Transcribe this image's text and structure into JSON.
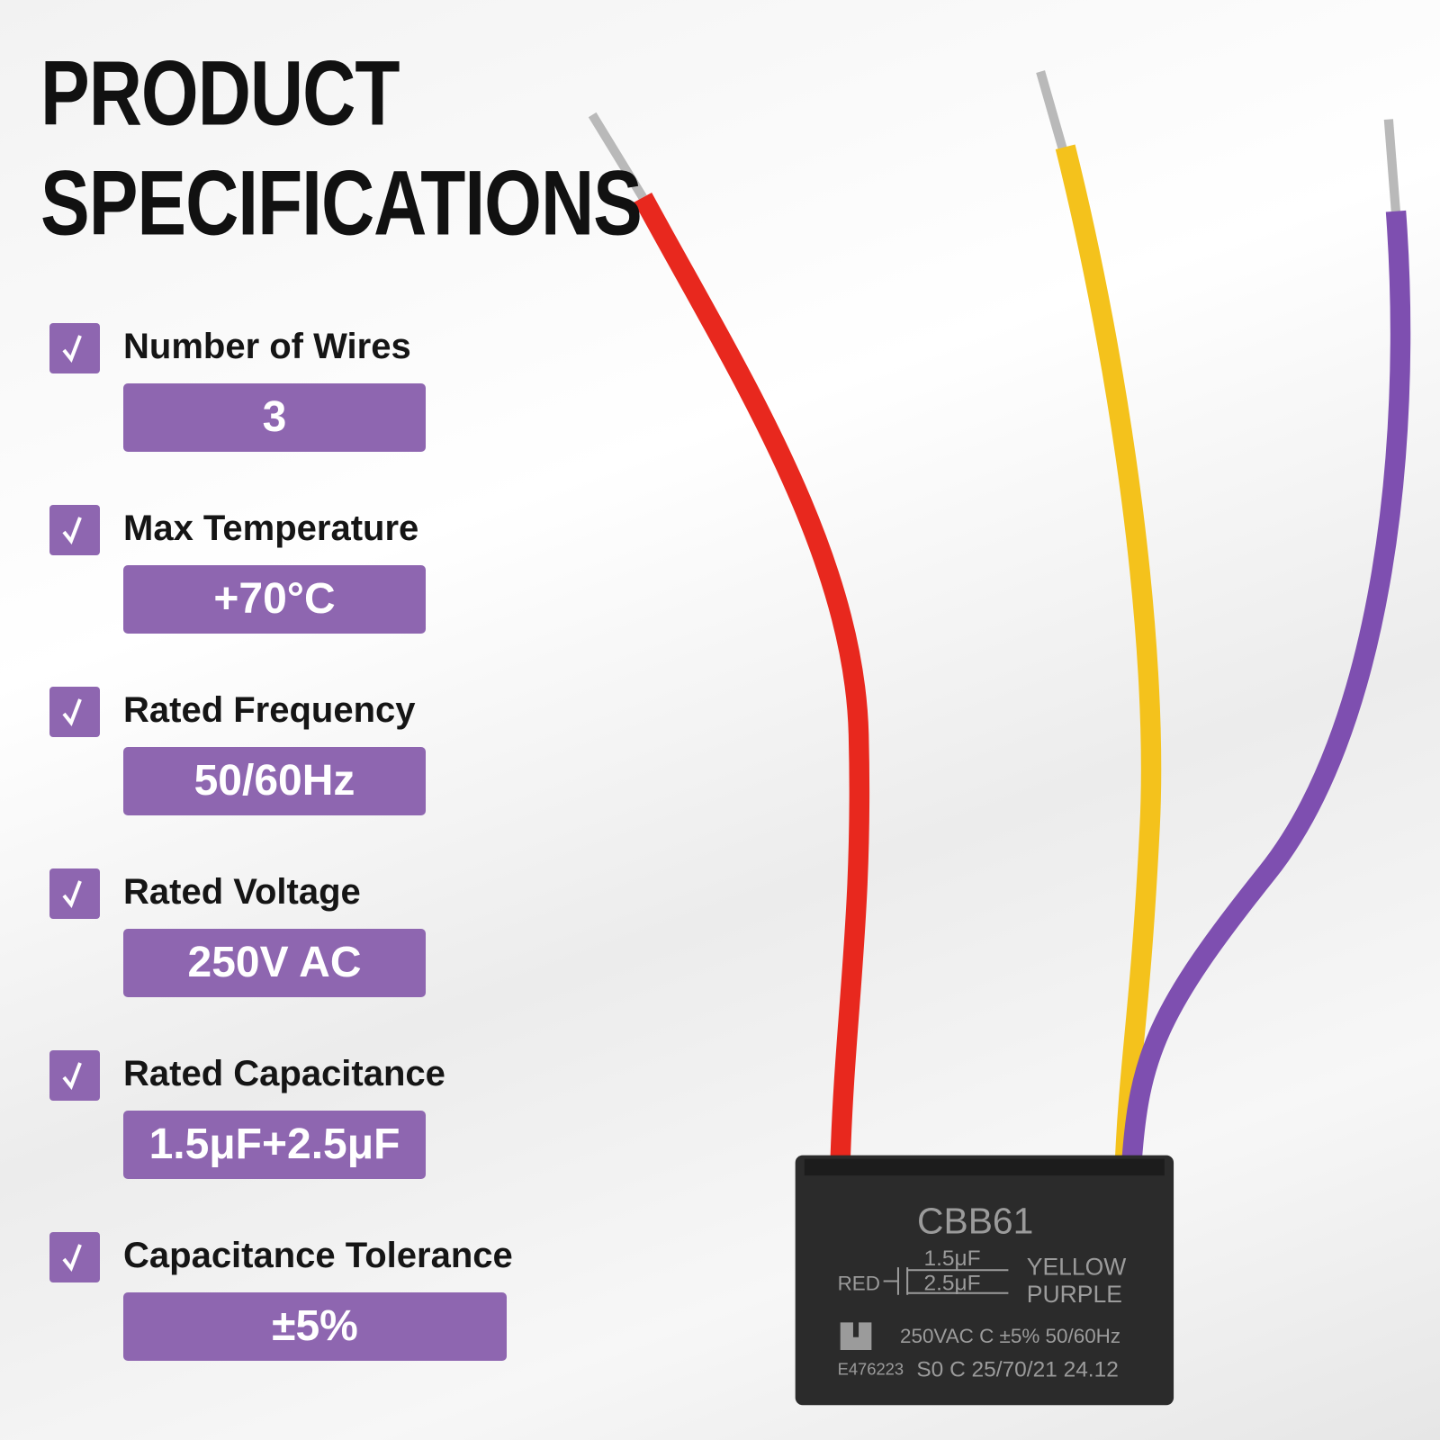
{
  "header": {
    "title": [
      "PRODUCT",
      "SPECIFICATIONS"
    ]
  },
  "specs": [
    {
      "label": "Number of Wires",
      "value": "3"
    },
    {
      "label": "Max Temperature",
      "value": "+70°C"
    },
    {
      "label": "Rated Frequency",
      "value": "50/60Hz"
    },
    {
      "label": "Rated Voltage",
      "value": "250V AC"
    },
    {
      "label": "Rated Capacitance",
      "value": "1.5μF+2.5μF"
    },
    {
      "label": "Capacitance Tolerance",
      "value": "±5%"
    }
  ],
  "capacitor": {
    "model": "CBB61",
    "red": "RED",
    "cap1": "1.5μF",
    "cap2": "2.5μF",
    "yellow": "YELLOW",
    "purple": "PURPLE",
    "rating": "250VAC C ±5% 50/60Hz",
    "cert": "E476223",
    "code": "S0 C 25/70/21 24.12"
  }
}
